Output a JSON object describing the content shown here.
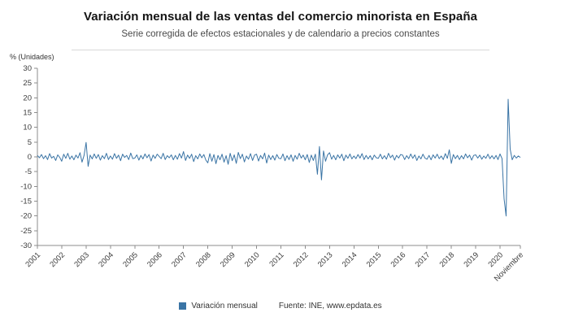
{
  "header": {
    "title": "Variación mensual de las ventas del comercio minorista en España",
    "subtitle": "Serie corregida de efectos estacionales y de calendario a precios constantes"
  },
  "axis": {
    "y_label": "% (Unidades)"
  },
  "legend": {
    "series_label": "Variación mensual",
    "source": "Fuente: INE, www.epdata.es"
  },
  "colors": {
    "line": "#3a74a5",
    "axis": "#8c8c8c",
    "text": "#3c3c3c",
    "rule": "#d9d9d9"
  },
  "chart_data": {
    "type": "line",
    "title": "Variación mensual de las ventas del comercio minorista en España",
    "subtitle": "Serie corregida de efectos estacionales y de calendario a precios constantes",
    "xlabel": "",
    "ylabel": "% (Unidades)",
    "ylim": [
      -30,
      30
    ],
    "y_ticks": [
      30,
      25,
      20,
      15,
      10,
      5,
      0,
      -5,
      -10,
      -15,
      -20,
      -25,
      -30
    ],
    "grid": false,
    "legend_position": "bottom",
    "x_tick_labels": [
      "2001",
      "2002",
      "2003",
      "2004",
      "2005",
      "2006",
      "2007",
      "2008",
      "2009",
      "2010",
      "2011",
      "2012",
      "2013",
      "2014",
      "2015",
      "2016",
      "2017",
      "2018",
      "2019",
      "2020",
      "Noviembre"
    ],
    "x_tick_indices": [
      0,
      12,
      24,
      36,
      48,
      60,
      72,
      84,
      96,
      108,
      120,
      132,
      144,
      156,
      168,
      180,
      192,
      204,
      216,
      228,
      238
    ],
    "series": [
      {
        "name": "Variación mensual",
        "color": "#3a74a5",
        "start": "2001-01",
        "end": "2020-11",
        "frequency": "monthly",
        "values": [
          0.5,
          -0.3,
          0.8,
          -0.6,
          0.4,
          -0.9,
          1.1,
          -0.4,
          0.2,
          -1.2,
          0.7,
          -0.2,
          -1.5,
          0.9,
          -0.5,
          1.2,
          -0.8,
          0.3,
          -1.0,
          0.6,
          -0.4,
          1.4,
          -1.8,
          0.5,
          4.9,
          -3.2,
          0.6,
          -0.7,
          1.0,
          -0.5,
          0.8,
          -1.1,
          0.4,
          -0.6,
          1.2,
          -0.9,
          0.3,
          -0.8,
          1.1,
          -0.5,
          0.6,
          -1.3,
          0.9,
          -0.2,
          0.5,
          -0.9,
          1.3,
          -0.6,
          -0.4,
          0.7,
          -1.1,
          0.5,
          -0.7,
          1.0,
          -0.3,
          0.8,
          -1.4,
          0.6,
          -0.5,
          0.9,
          0.2,
          -0.6,
          1.2,
          -0.9,
          0.4,
          -0.3,
          0.7,
          -1.0,
          0.5,
          -0.8,
          1.1,
          -0.4,
          1.8,
          -1.2,
          0.6,
          -0.5,
          0.9,
          -1.6,
          0.4,
          -0.7,
          1.0,
          -0.3,
          0.8,
          -1.1,
          -2.0,
          1.1,
          -1.5,
          0.8,
          -2.3,
          0.5,
          -1.0,
          0.9,
          -1.8,
          0.4,
          -2.5,
          1.2,
          -1.3,
          0.7,
          -2.2,
          1.5,
          -0.6,
          0.9,
          -1.7,
          0.3,
          -0.8,
          1.1,
          -1.2,
          0.6,
          0.9,
          -1.4,
          0.5,
          -0.7,
          1.3,
          -2.1,
          0.6,
          -0.9,
          0.4,
          -1.1,
          0.8,
          -0.5,
          -0.6,
          1.0,
          -1.3,
          0.4,
          -0.9,
          0.7,
          -1.5,
          0.5,
          -0.8,
          1.2,
          -0.4,
          0.6,
          -1.0,
          0.8,
          -1.9,
          0.6,
          -1.2,
          0.9,
          -5.9,
          3.5,
          -7.8,
          2.0,
          -1.5,
          0.7,
          1.4,
          -0.8,
          0.5,
          -1.0,
          0.7,
          -0.4,
          0.9,
          -1.3,
          0.6,
          -0.5,
          1.0,
          -0.7,
          0.3,
          -0.6,
          0.8,
          -0.4,
          1.1,
          -0.9,
          0.5,
          -0.7,
          0.4,
          -1.0,
          0.6,
          -0.3,
          -0.5,
          0.9,
          -0.7,
          0.4,
          -0.8,
          1.2,
          -0.3,
          0.6,
          -1.1,
          0.5,
          -0.4,
          0.8,
          0.6,
          -0.9,
          0.4,
          -0.6,
          1.0,
          -0.5,
          0.7,
          -1.2,
          0.3,
          -0.7,
          0.9,
          -0.4,
          -0.8,
          0.5,
          -1.0,
          0.7,
          -0.4,
          0.9,
          -0.6,
          0.3,
          -0.9,
          1.1,
          -0.5,
          2.4,
          -2.2,
          0.8,
          -0.6,
          0.5,
          -0.9,
          0.4,
          -0.7,
          1.0,
          -0.3,
          0.6,
          -1.1,
          0.5,
          0.7,
          -0.4,
          0.6,
          -0.8,
          0.3,
          -0.5,
          0.9,
          -0.6,
          0.4,
          -0.7,
          0.5,
          -0.9,
          1.0,
          -0.6,
          -14.2,
          -20.0,
          19.5,
          2.6,
          -1.0,
          0.5,
          -0.4,
          0.3,
          -0.2
        ]
      }
    ]
  }
}
